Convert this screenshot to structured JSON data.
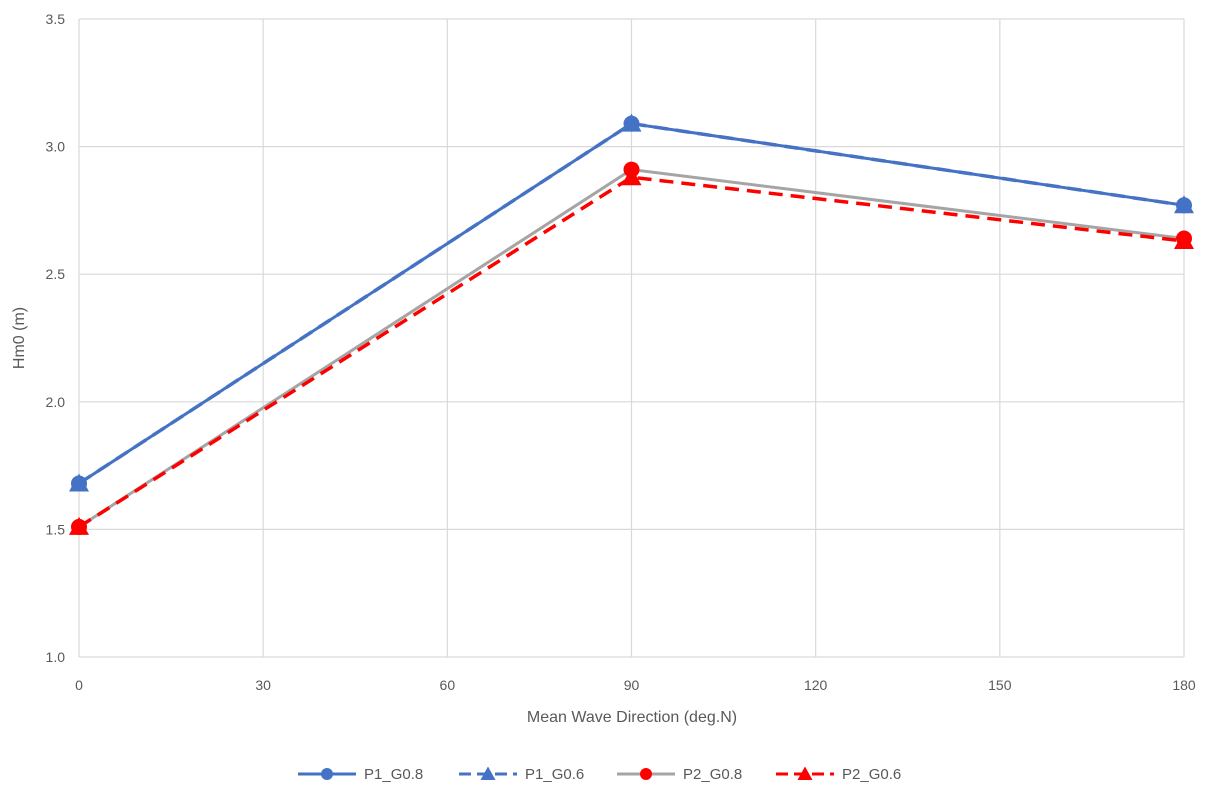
{
  "chart_data": {
    "type": "line",
    "title": "",
    "xlabel": "Mean Wave Direction (deg.N)",
    "ylabel": "Hm0 (m)",
    "x": [
      0,
      90,
      180
    ],
    "xlim": [
      0,
      180
    ],
    "ylim": [
      1.0,
      3.5
    ],
    "xticks": [
      "0",
      "30",
      "60",
      "90",
      "120",
      "150",
      "180"
    ],
    "yticks": [
      "1.0",
      "1.5",
      "2.0",
      "2.5",
      "3.0",
      "3.5"
    ],
    "grid": true,
    "legend_position": "bottom",
    "series": [
      {
        "name": "P1_G0.8",
        "values": [
          1.68,
          3.09,
          2.77
        ],
        "color": "#4472C4",
        "line": "solid",
        "marker": "circle"
      },
      {
        "name": "P1_G0.6",
        "values": [
          1.68,
          3.09,
          2.77
        ],
        "color": "#4472C4",
        "line": "dashed",
        "marker": "triangle"
      },
      {
        "name": "P2_G0.8",
        "values": [
          1.51,
          2.91,
          2.64
        ],
        "color": "#A5A5A5",
        "marker_color": "#FF0000",
        "line": "solid",
        "marker": "circle"
      },
      {
        "name": "P2_G0.6",
        "values": [
          1.51,
          2.88,
          2.63
        ],
        "color": "#FF0000",
        "line": "dashed",
        "marker": "triangle"
      }
    ]
  }
}
